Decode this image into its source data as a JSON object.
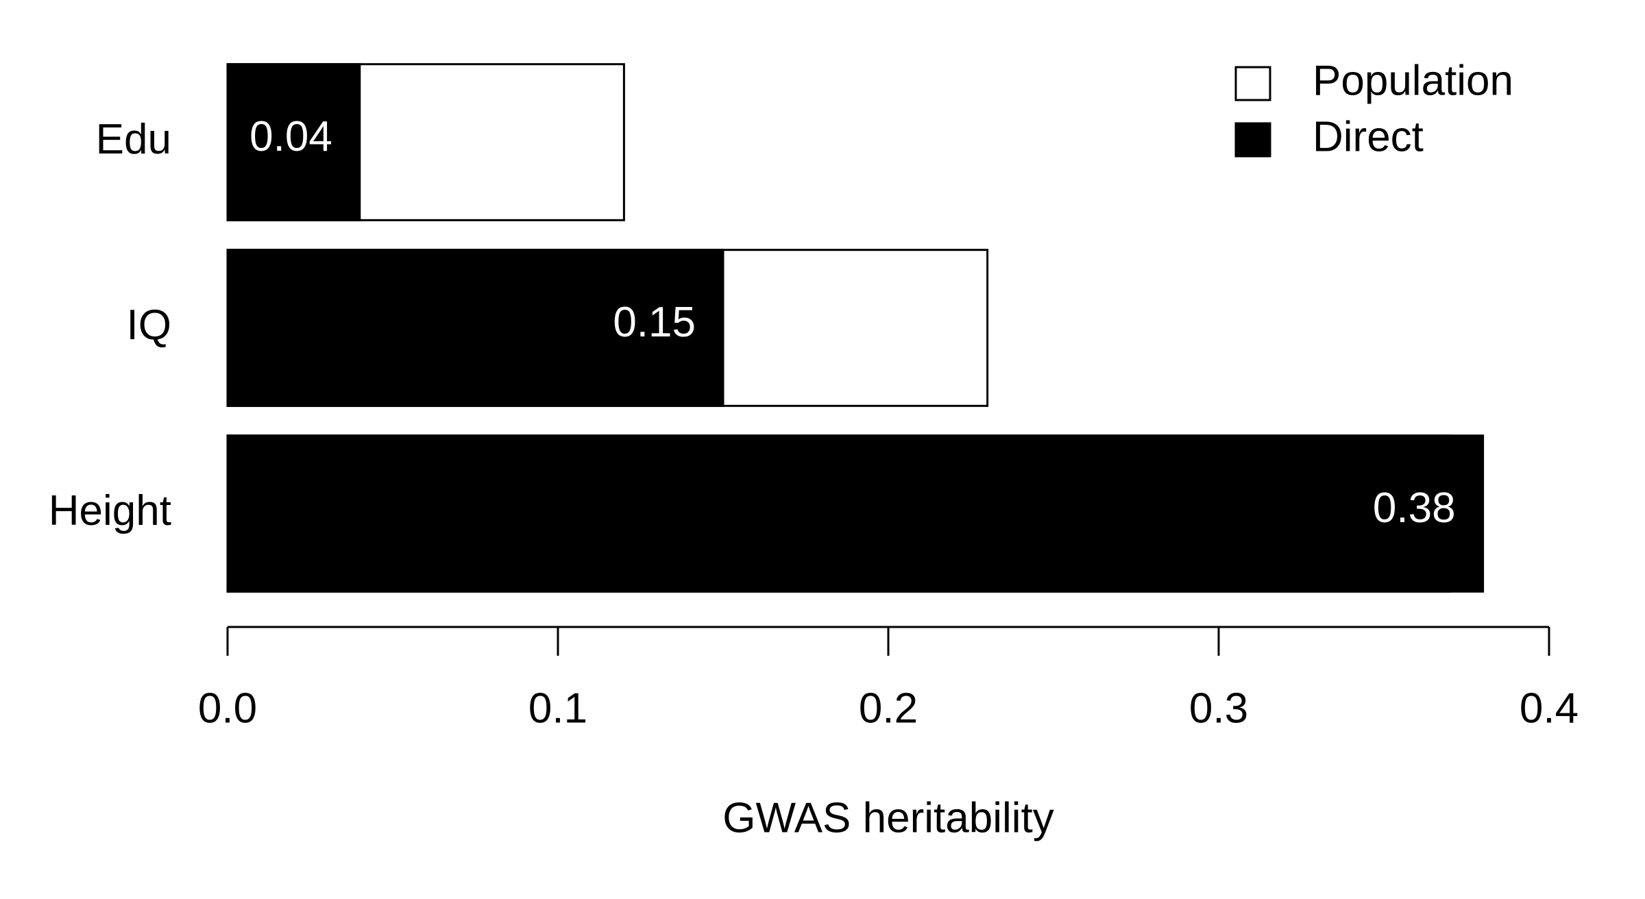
{
  "chart_data": {
    "type": "bar",
    "orientation": "horizontal",
    "xlabel": "GWAS heritability",
    "categories": [
      "Edu",
      "IQ",
      "Height"
    ],
    "series": [
      {
        "name": "Population",
        "color": "#ffffff",
        "values": [
          0.12,
          0.23,
          0.37
        ]
      },
      {
        "name": "Direct",
        "color": "#000000",
        "values": [
          0.04,
          0.15,
          0.38
        ]
      }
    ],
    "xlim": [
      0,
      0.4
    ],
    "xticks": [
      {
        "value": 0,
        "label": "0.0"
      },
      0.1,
      0.2,
      0.3,
      0.4
    ],
    "legend": "top-right"
  }
}
